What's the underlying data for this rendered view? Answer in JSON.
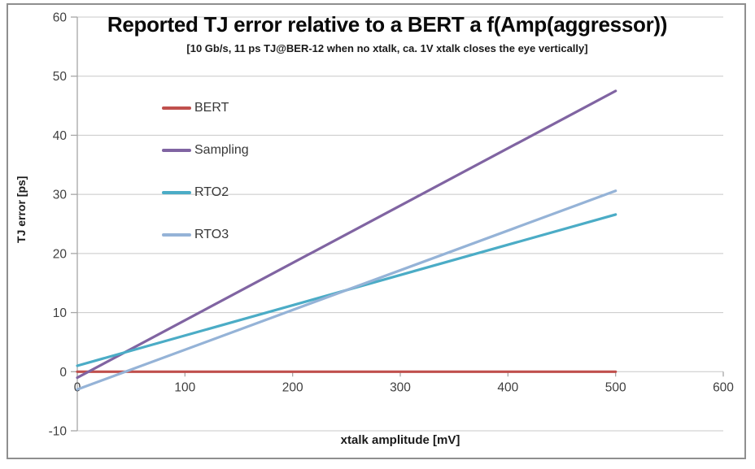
{
  "chart_data": {
    "type": "line",
    "title": "Reported TJ error relative to a BERT a f(Amp(aggressor))",
    "subtitle": "[10 Gb/s, 11 ps TJ@BER-12 when no xtalk, ca. 1V xtalk closes the eye vertically]",
    "xlabel": "xtalk amplitude [mV]",
    "ylabel": "TJ error [ps]",
    "xlim": [
      0,
      600
    ],
    "ylim": [
      -10,
      60
    ],
    "xticks": [
      0,
      100,
      200,
      300,
      400,
      500,
      600
    ],
    "yticks": [
      60,
      50,
      40,
      30,
      20,
      10,
      0,
      -10
    ],
    "grid": "horizontal",
    "legend_position": "inside-upper-left",
    "series": [
      {
        "name": "BERT",
        "color": "#C0504D",
        "points": [
          [
            0,
            0
          ],
          [
            500,
            0
          ]
        ]
      },
      {
        "name": "Sampling",
        "color": "#8064A2",
        "points": [
          [
            0,
            -1
          ],
          [
            500,
            47.5
          ]
        ]
      },
      {
        "name": "RTO2",
        "color": "#4BACC6",
        "points": [
          [
            0,
            1
          ],
          [
            500,
            26.6
          ]
        ]
      },
      {
        "name": "RTO3",
        "color": "#95B3D7",
        "points": [
          [
            0,
            -3
          ],
          [
            500,
            30.6
          ]
        ]
      }
    ],
    "colors": {
      "gridline": "#c8c8c8",
      "axis_line": "#a6a6a6",
      "tick_label": "#3f3f3f",
      "frame_border": "#8f8f8f"
    }
  }
}
